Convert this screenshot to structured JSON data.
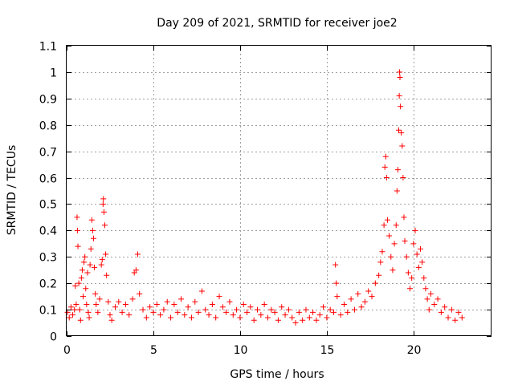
{
  "chart_data": {
    "type": "scatter",
    "title": "Day 209 of 2021, SRMTID for receiver joe2",
    "xlabel": "GPS time / hours",
    "ylabel": "SRMTID / TECUs",
    "xlim": [
      0,
      24.5
    ],
    "ylim": [
      0,
      1.1
    ],
    "xticks": [
      0,
      5,
      10,
      15,
      20
    ],
    "xtick_labels": [
      "0",
      "5",
      "10",
      "15",
      "20"
    ],
    "yticks": [
      0,
      0.1,
      0.2,
      0.3,
      0.4,
      0.5,
      0.6,
      0.7,
      0.8,
      0.9,
      1.0,
      1.1
    ],
    "ytick_labels": [
      "0",
      "0.1",
      "0.2",
      "0.3",
      "0.4",
      "0.5",
      "0.6",
      "0.7",
      "0.8",
      "0.9",
      "1",
      "1.1"
    ],
    "grid": true,
    "marker": "+",
    "color": "#ff0000",
    "series": [
      {
        "name": "SRMTID",
        "points": [
          [
            0.05,
            0.09
          ],
          [
            0.15,
            0.07
          ],
          [
            0.25,
            0.11
          ],
          [
            0.35,
            0.08
          ],
          [
            0.45,
            0.1
          ],
          [
            0.5,
            0.19
          ],
          [
            0.55,
            0.12
          ],
          [
            0.6,
            0.45
          ],
          [
            0.62,
            0.4
          ],
          [
            0.65,
            0.34
          ],
          [
            0.7,
            0.2
          ],
          [
            0.75,
            0.1
          ],
          [
            0.8,
            0.06
          ],
          [
            0.85,
            0.22
          ],
          [
            0.9,
            0.25
          ],
          [
            0.95,
            0.15
          ],
          [
            1.0,
            0.28
          ],
          [
            1.05,
            0.3
          ],
          [
            1.1,
            0.18
          ],
          [
            1.15,
            0.12
          ],
          [
            1.2,
            0.24
          ],
          [
            1.25,
            0.09
          ],
          [
            1.3,
            0.07
          ],
          [
            1.35,
            0.27
          ],
          [
            1.4,
            0.33
          ],
          [
            1.45,
            0.44
          ],
          [
            1.5,
            0.4
          ],
          [
            1.55,
            0.37
          ],
          [
            1.6,
            0.26
          ],
          [
            1.65,
            0.16
          ],
          [
            1.7,
            0.12
          ],
          [
            1.8,
            0.09
          ],
          [
            1.9,
            0.14
          ],
          [
            2.0,
            0.27
          ],
          [
            2.05,
            0.29
          ],
          [
            2.1,
            0.5
          ],
          [
            2.12,
            0.52
          ],
          [
            2.15,
            0.47
          ],
          [
            2.2,
            0.42
          ],
          [
            2.25,
            0.31
          ],
          [
            2.3,
            0.23
          ],
          [
            2.4,
            0.13
          ],
          [
            2.5,
            0.08
          ],
          [
            2.6,
            0.06
          ],
          [
            2.8,
            0.11
          ],
          [
            3.0,
            0.13
          ],
          [
            3.2,
            0.09
          ],
          [
            3.4,
            0.12
          ],
          [
            3.6,
            0.08
          ],
          [
            3.8,
            0.14
          ],
          [
            3.9,
            0.24
          ],
          [
            4.0,
            0.25
          ],
          [
            4.1,
            0.31
          ],
          [
            4.2,
            0.16
          ],
          [
            4.4,
            0.1
          ],
          [
            4.6,
            0.07
          ],
          [
            4.8,
            0.11
          ],
          [
            5.0,
            0.09
          ],
          [
            5.2,
            0.12
          ],
          [
            5.4,
            0.08
          ],
          [
            5.6,
            0.1
          ],
          [
            5.8,
            0.13
          ],
          [
            6.0,
            0.07
          ],
          [
            6.2,
            0.12
          ],
          [
            6.4,
            0.09
          ],
          [
            6.6,
            0.14
          ],
          [
            6.8,
            0.08
          ],
          [
            7.0,
            0.11
          ],
          [
            7.2,
            0.07
          ],
          [
            7.4,
            0.13
          ],
          [
            7.6,
            0.09
          ],
          [
            7.8,
            0.17
          ],
          [
            8.0,
            0.1
          ],
          [
            8.2,
            0.08
          ],
          [
            8.4,
            0.12
          ],
          [
            8.6,
            0.07
          ],
          [
            8.8,
            0.15
          ],
          [
            9.0,
            0.11
          ],
          [
            9.2,
            0.09
          ],
          [
            9.4,
            0.13
          ],
          [
            9.6,
            0.08
          ],
          [
            9.8,
            0.1
          ],
          [
            10.0,
            0.07
          ],
          [
            10.2,
            0.12
          ],
          [
            10.4,
            0.09
          ],
          [
            10.6,
            0.11
          ],
          [
            10.8,
            0.06
          ],
          [
            11.0,
            0.1
          ],
          [
            11.2,
            0.08
          ],
          [
            11.4,
            0.12
          ],
          [
            11.6,
            0.07
          ],
          [
            11.8,
            0.1
          ],
          [
            12.0,
            0.09
          ],
          [
            12.2,
            0.06
          ],
          [
            12.4,
            0.11
          ],
          [
            12.6,
            0.08
          ],
          [
            12.8,
            0.1
          ],
          [
            13.0,
            0.07
          ],
          [
            13.2,
            0.05
          ],
          [
            13.4,
            0.09
          ],
          [
            13.6,
            0.06
          ],
          [
            13.8,
            0.1
          ],
          [
            14.0,
            0.07
          ],
          [
            14.2,
            0.09
          ],
          [
            14.4,
            0.06
          ],
          [
            14.6,
            0.08
          ],
          [
            14.8,
            0.11
          ],
          [
            15.0,
            0.07
          ],
          [
            15.2,
            0.1
          ],
          [
            15.4,
            0.09
          ],
          [
            15.5,
            0.27
          ],
          [
            15.55,
            0.2
          ],
          [
            15.6,
            0.15
          ],
          [
            15.8,
            0.08
          ],
          [
            16.0,
            0.12
          ],
          [
            16.2,
            0.09
          ],
          [
            16.4,
            0.14
          ],
          [
            16.6,
            0.1
          ],
          [
            16.8,
            0.16
          ],
          [
            17.0,
            0.11
          ],
          [
            17.2,
            0.13
          ],
          [
            17.4,
            0.17
          ],
          [
            17.6,
            0.15
          ],
          [
            17.8,
            0.2
          ],
          [
            18.0,
            0.23
          ],
          [
            18.1,
            0.28
          ],
          [
            18.2,
            0.32
          ],
          [
            18.3,
            0.42
          ],
          [
            18.35,
            0.64
          ],
          [
            18.4,
            0.68
          ],
          [
            18.45,
            0.6
          ],
          [
            18.5,
            0.44
          ],
          [
            18.6,
            0.38
          ],
          [
            18.7,
            0.3
          ],
          [
            18.8,
            0.25
          ],
          [
            18.9,
            0.35
          ],
          [
            19.0,
            0.42
          ],
          [
            19.05,
            0.55
          ],
          [
            19.1,
            0.63
          ],
          [
            19.15,
            0.78
          ],
          [
            19.18,
            0.91
          ],
          [
            19.2,
            1.0
          ],
          [
            19.22,
            0.98
          ],
          [
            19.25,
            0.87
          ],
          [
            19.3,
            0.77
          ],
          [
            19.35,
            0.72
          ],
          [
            19.4,
            0.6
          ],
          [
            19.45,
            0.45
          ],
          [
            19.5,
            0.36
          ],
          [
            19.6,
            0.3
          ],
          [
            19.7,
            0.24
          ],
          [
            19.8,
            0.18
          ],
          [
            19.9,
            0.22
          ],
          [
            20.0,
            0.35
          ],
          [
            20.1,
            0.4
          ],
          [
            20.2,
            0.31
          ],
          [
            20.3,
            0.26
          ],
          [
            20.4,
            0.33
          ],
          [
            20.5,
            0.28
          ],
          [
            20.6,
            0.22
          ],
          [
            20.7,
            0.18
          ],
          [
            20.8,
            0.14
          ],
          [
            20.9,
            0.1
          ],
          [
            21.0,
            0.16
          ],
          [
            21.2,
            0.12
          ],
          [
            21.4,
            0.14
          ],
          [
            21.6,
            0.09
          ],
          [
            21.8,
            0.11
          ],
          [
            22.0,
            0.07
          ],
          [
            22.2,
            0.1
          ],
          [
            22.4,
            0.06
          ],
          [
            22.6,
            0.09
          ],
          [
            22.8,
            0.07
          ]
        ]
      }
    ]
  }
}
